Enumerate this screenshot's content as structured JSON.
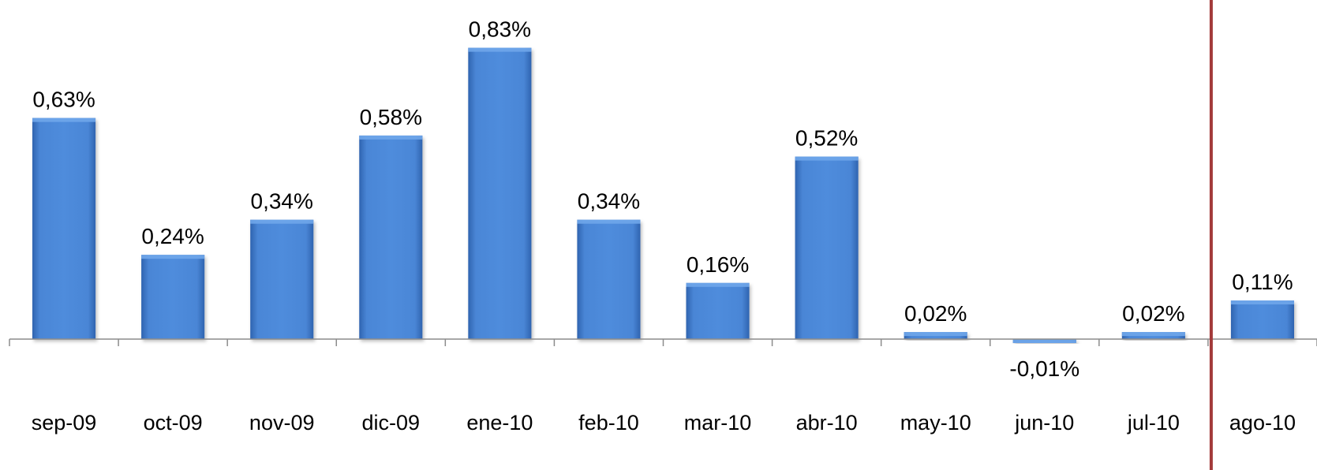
{
  "chart_data": {
    "type": "bar",
    "title": "",
    "xlabel": "",
    "ylabel": "",
    "categories": [
      "sep-09",
      "oct-09",
      "nov-09",
      "dic-09",
      "ene-10",
      "feb-10",
      "mar-10",
      "abr-10",
      "may-10",
      "jun-10",
      "jul-10",
      "ago-10"
    ],
    "values": [
      0.63,
      0.24,
      0.34,
      0.58,
      0.83,
      0.34,
      0.16,
      0.52,
      0.02,
      -0.01,
      0.02,
      0.11
    ],
    "value_labels": [
      "0,63%",
      "0,24%",
      "0,34%",
      "0,58%",
      "0,83%",
      "0,34%",
      "0,16%",
      "0,52%",
      "0,02%",
      "-0,01%",
      "0,02%",
      "0,11%"
    ],
    "ylim": [
      -0.15,
      0.88
    ],
    "grid": false,
    "legend": "none",
    "colors": {
      "bar": "#4a86d6",
      "bar_light": "#6fa6ea",
      "bar_dark": "#2f64b0",
      "axis": "#8c8c8c",
      "separator": "#a33a3a"
    }
  }
}
